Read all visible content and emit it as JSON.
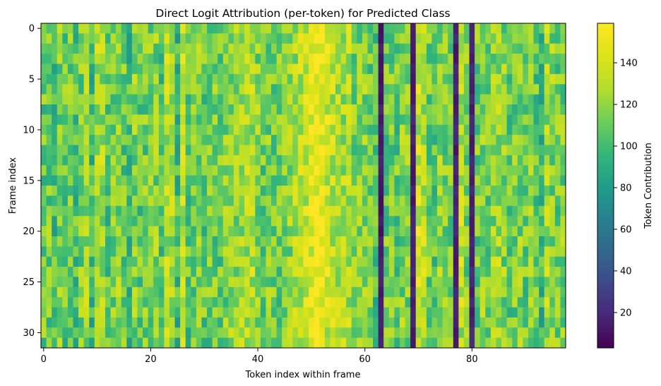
{
  "chart_data": {
    "type": "heatmap",
    "title": "Direct Logit Attribution (per-token) for Predicted Class",
    "xlabel": "Token index within frame",
    "ylabel": "Frame index",
    "n_rows": 32,
    "n_cols": 98,
    "xlim": [
      -0.5,
      97.5
    ],
    "ylim": [
      31.5,
      -0.5
    ],
    "x_ticks": [
      0,
      20,
      40,
      60,
      80
    ],
    "y_ticks": [
      0,
      5,
      10,
      15,
      20,
      25,
      30
    ],
    "colormap": "viridis",
    "colorbar": {
      "label": "Token Contribution",
      "range": [
        3,
        159
      ],
      "ticks": [
        20,
        40,
        60,
        80,
        100,
        120,
        140
      ]
    },
    "value_model": {
      "base": 105,
      "column_means": {
        "0": 110,
        "1": 112,
        "2": 100,
        "3": 115,
        "4": 108,
        "5": 112,
        "6": 103,
        "7": 115,
        "8": 122,
        "9": 100,
        "10": 128,
        "11": 125,
        "12": 105,
        "13": 115,
        "14": 118,
        "15": 110,
        "16": 100,
        "17": 118,
        "18": 108,
        "19": 112,
        "20": 113,
        "21": 118,
        "22": 105,
        "23": 128,
        "24": 125,
        "25": 98,
        "26": 130,
        "27": 105,
        "28": 110,
        "29": 115,
        "30": 108,
        "31": 110,
        "32": 112,
        "33": 108,
        "34": 115,
        "35": 120,
        "36": 118,
        "37": 122,
        "38": 125,
        "39": 128,
        "40": 118,
        "41": 110,
        "42": 115,
        "43": 112,
        "44": 110,
        "45": 115,
        "46": 120,
        "47": 125,
        "48": 130,
        "49": 135,
        "50": 145,
        "51": 150,
        "52": 148,
        "53": 138,
        "54": 132,
        "55": 128,
        "56": 125,
        "57": 130,
        "58": 115,
        "59": 118,
        "60": 120,
        "61": 112,
        "62": 105,
        "63": 8,
        "64": 110,
        "65": 112,
        "66": 108,
        "67": 118,
        "68": 115,
        "69": 10,
        "70": 135,
        "71": 130,
        "72": 112,
        "73": 108,
        "74": 120,
        "75": 115,
        "76": 110,
        "77": 10,
        "78": 130,
        "79": 115,
        "80": 12,
        "81": 110,
        "82": 118,
        "83": 112,
        "84": 120,
        "85": 125,
        "86": 118,
        "87": 108,
        "88": 112,
        "89": 118,
        "90": 110,
        "91": 120,
        "92": 108,
        "93": 98,
        "94": 125,
        "95": 118,
        "96": 112,
        "97": 115
      },
      "noise_amplitude": 22
    }
  }
}
